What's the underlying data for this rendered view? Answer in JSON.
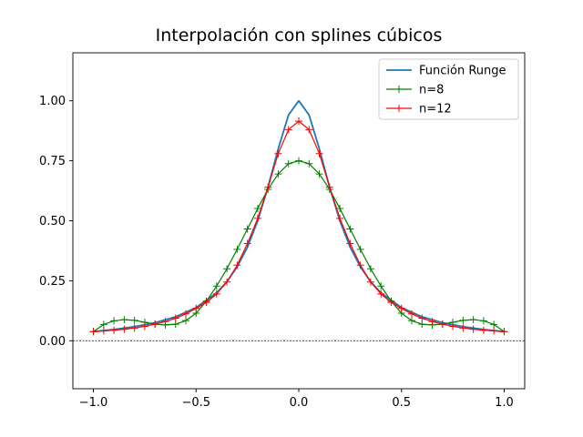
{
  "chart_data": {
    "type": "line",
    "title": "Interpolación con splines cúbicos",
    "xlabel": "",
    "ylabel": "",
    "xlim": [
      -1.1,
      1.1
    ],
    "ylim": [
      -0.2,
      1.2
    ],
    "xticks": [
      -1.0,
      -0.5,
      0.0,
      0.5,
      1.0
    ],
    "xtick_labels": [
      "−1.0",
      "−0.5",
      "0.0",
      "0.5",
      "1.0"
    ],
    "yticks": [
      0.0,
      0.25,
      0.5,
      0.75,
      1.0
    ],
    "ytick_labels": [
      "0.00",
      "0.25",
      "0.50",
      "0.75",
      "1.00"
    ],
    "hline_y": 0,
    "legend_position": "top-right",
    "grid": false,
    "series": [
      {
        "name": "Función Runge",
        "color": "#1f77b4",
        "marker": "none",
        "x": [
          -1.0,
          -0.9,
          -0.8,
          -0.7,
          -0.6,
          -0.5,
          -0.4,
          -0.35,
          -0.3,
          -0.25,
          -0.2,
          -0.15,
          -0.1,
          -0.05,
          0.0,
          0.05,
          0.1,
          0.15,
          0.2,
          0.25,
          0.3,
          0.35,
          0.4,
          0.5,
          0.6,
          0.7,
          0.8,
          0.9,
          1.0
        ],
        "y": [
          0.038,
          0.047,
          0.059,
          0.075,
          0.1,
          0.138,
          0.2,
          0.246,
          0.308,
          0.39,
          0.5,
          0.64,
          0.8,
          0.941,
          1.0,
          0.941,
          0.8,
          0.64,
          0.5,
          0.39,
          0.308,
          0.246,
          0.2,
          0.138,
          0.1,
          0.075,
          0.059,
          0.047,
          0.038
        ]
      },
      {
        "name": "n=8",
        "color": "#008000",
        "marker": "+",
        "x": [
          -1.0,
          -0.95,
          -0.9,
          -0.85,
          -0.8,
          -0.75,
          -0.7,
          -0.65,
          -0.6,
          -0.55,
          -0.5,
          -0.45,
          -0.4,
          -0.35,
          -0.3,
          -0.25,
          -0.2,
          -0.15,
          -0.1,
          -0.05,
          0.0,
          0.05,
          0.1,
          0.15,
          0.2,
          0.25,
          0.3,
          0.35,
          0.4,
          0.45,
          0.5,
          0.55,
          0.6,
          0.65,
          0.7,
          0.75,
          0.8,
          0.85,
          0.9,
          0.95,
          1.0
        ],
        "y": [
          0.038,
          0.068,
          0.083,
          0.088,
          0.085,
          0.077,
          0.069,
          0.066,
          0.069,
          0.084,
          0.115,
          0.165,
          0.228,
          0.3,
          0.381,
          0.466,
          0.551,
          0.631,
          0.695,
          0.738,
          0.75,
          0.738,
          0.695,
          0.631,
          0.551,
          0.466,
          0.381,
          0.3,
          0.228,
          0.165,
          0.115,
          0.084,
          0.069,
          0.066,
          0.069,
          0.077,
          0.085,
          0.088,
          0.083,
          0.068,
          0.038
        ]
      },
      {
        "name": "n=12",
        "color": "#ff0000",
        "marker": "+",
        "x": [
          -1.0,
          -0.95,
          -0.9,
          -0.85,
          -0.8,
          -0.75,
          -0.7,
          -0.65,
          -0.6,
          -0.55,
          -0.5,
          -0.45,
          -0.4,
          -0.35,
          -0.3,
          -0.25,
          -0.2,
          -0.15,
          -0.1,
          -0.05,
          0.0,
          0.05,
          0.1,
          0.15,
          0.2,
          0.25,
          0.3,
          0.35,
          0.4,
          0.45,
          0.5,
          0.55,
          0.6,
          0.65,
          0.7,
          0.75,
          0.8,
          0.85,
          0.9,
          0.95,
          1.0
        ],
        "y": [
          0.038,
          0.041,
          0.044,
          0.048,
          0.053,
          0.06,
          0.069,
          0.08,
          0.094,
          0.112,
          0.135,
          0.16,
          0.195,
          0.245,
          0.315,
          0.405,
          0.51,
          0.64,
          0.78,
          0.88,
          0.915,
          0.88,
          0.78,
          0.64,
          0.51,
          0.405,
          0.315,
          0.245,
          0.195,
          0.16,
          0.135,
          0.112,
          0.094,
          0.08,
          0.069,
          0.06,
          0.053,
          0.048,
          0.044,
          0.041,
          0.038
        ]
      }
    ]
  }
}
